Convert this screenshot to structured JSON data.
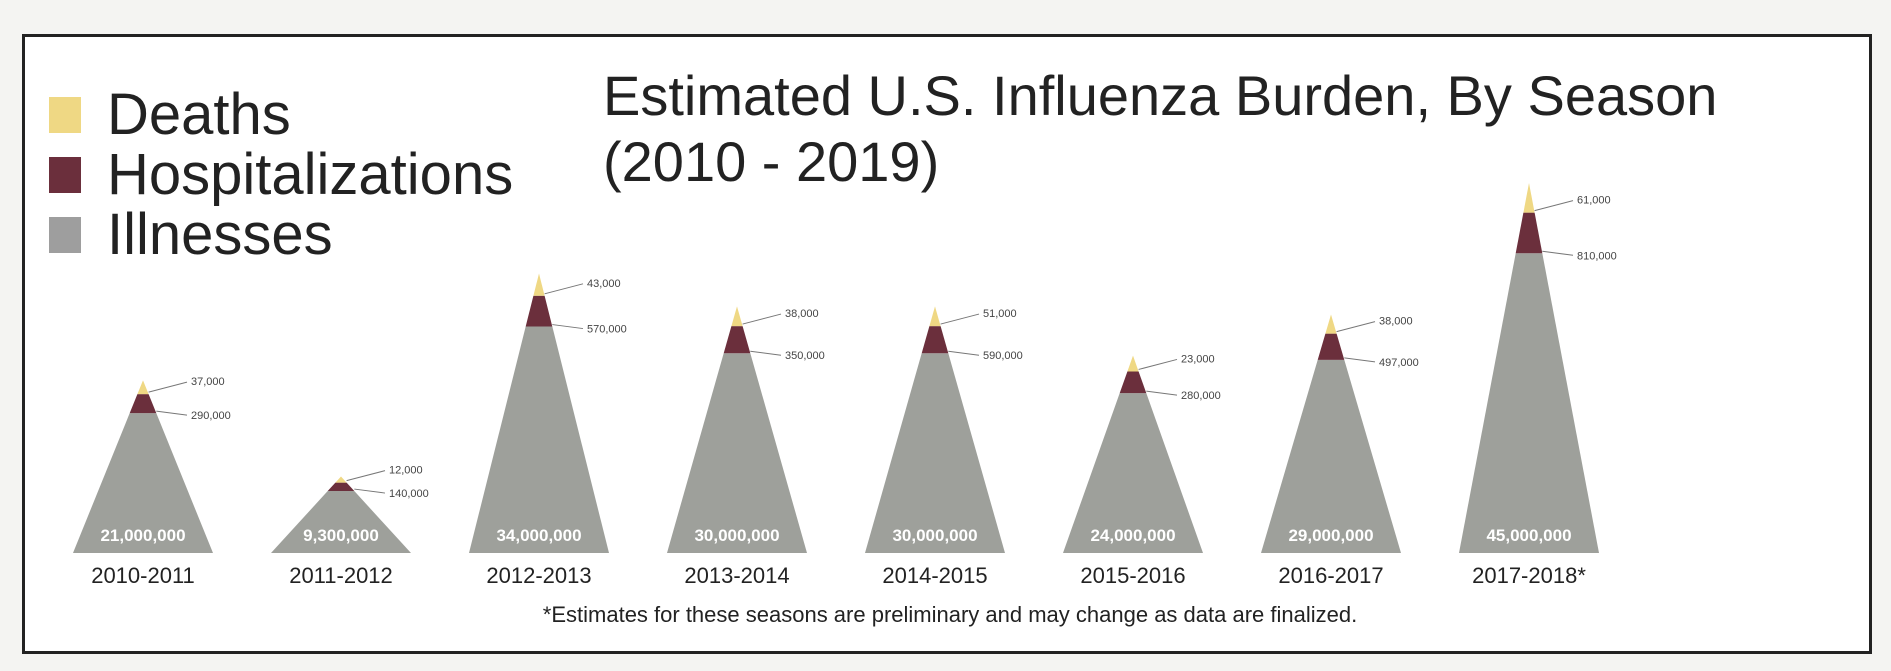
{
  "legend": [
    {
      "label": "Deaths",
      "color": "#efd884"
    },
    {
      "label": "Hospitalizations",
      "color": "#6b2f3c"
    },
    {
      "label": "Illnesses",
      "color": "#9e9e9e"
    }
  ],
  "title": {
    "line1": "Estimated U.S. Influenza Burden, By Season",
    "line2": "(2010 - 2019)"
  },
  "footnote": "*Estimates for these seasons are preliminary and may change as data are finalized.",
  "chart_data": {
    "type": "bar",
    "title": "Estimated U.S. Influenza Burden, By Season (2010 - 2019)",
    "categories": [
      "2010-2011",
      "2011-2012",
      "2012-2013",
      "2013-2014",
      "2014-2015",
      "2015-2016",
      "2016-2017",
      "2017-2018*"
    ],
    "series": [
      {
        "name": "Illnesses",
        "color": "#9ea09b",
        "values": [
          21000000,
          9300000,
          34000000,
          30000000,
          30000000,
          24000000,
          29000000,
          45000000
        ],
        "labels": [
          "21,000,000",
          "9,300,000",
          "34,000,000",
          "30,000,000",
          "30,000,000",
          "24,000,000",
          "29,000,000",
          "45,000,000"
        ]
      },
      {
        "name": "Hospitalizations",
        "color": "#6b2f3c",
        "values": [
          290000,
          140000,
          570000,
          350000,
          590000,
          280000,
          497000,
          810000
        ],
        "labels": [
          "290,000",
          "140,000",
          "570,000",
          "350,000",
          "590,000",
          "280,000",
          "497,000",
          "810,000"
        ]
      },
      {
        "name": "Deaths",
        "color": "#efd884",
        "values": [
          37000,
          12000,
          43000,
          38000,
          51000,
          23000,
          38000,
          61000
        ],
        "labels": [
          "37,000",
          "12,000",
          "43,000",
          "38,000",
          "51,000",
          "23,000",
          "38,000",
          "61,000"
        ]
      }
    ],
    "legend_position": "top-left",
    "grid": false
  }
}
